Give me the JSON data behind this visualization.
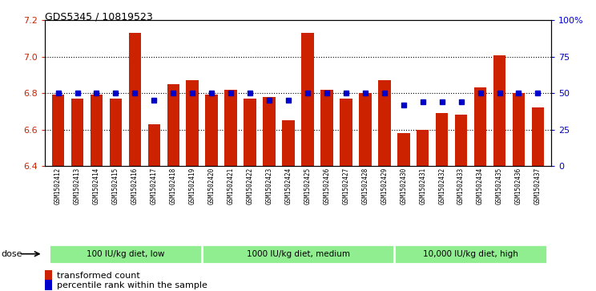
{
  "title": "GDS5345 / 10819523",
  "samples": [
    "GSM1502412",
    "GSM1502413",
    "GSM1502414",
    "GSM1502415",
    "GSM1502416",
    "GSM1502417",
    "GSM1502418",
    "GSM1502419",
    "GSM1502420",
    "GSM1502421",
    "GSM1502422",
    "GSM1502423",
    "GSM1502424",
    "GSM1502425",
    "GSM1502426",
    "GSM1502427",
    "GSM1502428",
    "GSM1502429",
    "GSM1502430",
    "GSM1502431",
    "GSM1502432",
    "GSM1502433",
    "GSM1502434",
    "GSM1502435",
    "GSM1502436",
    "GSM1502437"
  ],
  "bar_values": [
    6.79,
    6.77,
    6.79,
    6.77,
    7.13,
    6.63,
    6.85,
    6.87,
    6.79,
    6.82,
    6.77,
    6.78,
    6.65,
    7.13,
    6.82,
    6.77,
    6.8,
    6.87,
    6.58,
    6.6,
    6.69,
    6.68,
    6.83,
    7.01,
    6.8,
    6.72
  ],
  "percentile_values": [
    50,
    50,
    50,
    50,
    50,
    45,
    50,
    50,
    50,
    50,
    50,
    45,
    45,
    50,
    50,
    50,
    50,
    50,
    42,
    44,
    44,
    44,
    50,
    50,
    50,
    50
  ],
  "bar_color": "#cc2200",
  "percentile_color": "#0000cc",
  "ylim_left": [
    6.4,
    7.2
  ],
  "ylim_right": [
    0,
    100
  ],
  "yticks_left": [
    6.4,
    6.6,
    6.8,
    7.0,
    7.2
  ],
  "yticks_right": [
    0,
    25,
    50,
    75,
    100
  ],
  "ytick_labels_right": [
    "0",
    "25",
    "50",
    "75",
    "100%"
  ],
  "gridlines": [
    6.6,
    6.8,
    7.0
  ],
  "groups": [
    {
      "label": "100 IU/kg diet, low",
      "start": 0,
      "end": 8
    },
    {
      "label": "1000 IU/kg diet, medium",
      "start": 8,
      "end": 18
    },
    {
      "label": "10,000 IU/kg diet, high",
      "start": 18,
      "end": 26
    }
  ],
  "green_color": "#90ee90",
  "dose_label": "dose",
  "legend_items": [
    {
      "color": "#cc2200",
      "label": "transformed count"
    },
    {
      "color": "#0000cc",
      "label": "percentile rank within the sample"
    }
  ]
}
